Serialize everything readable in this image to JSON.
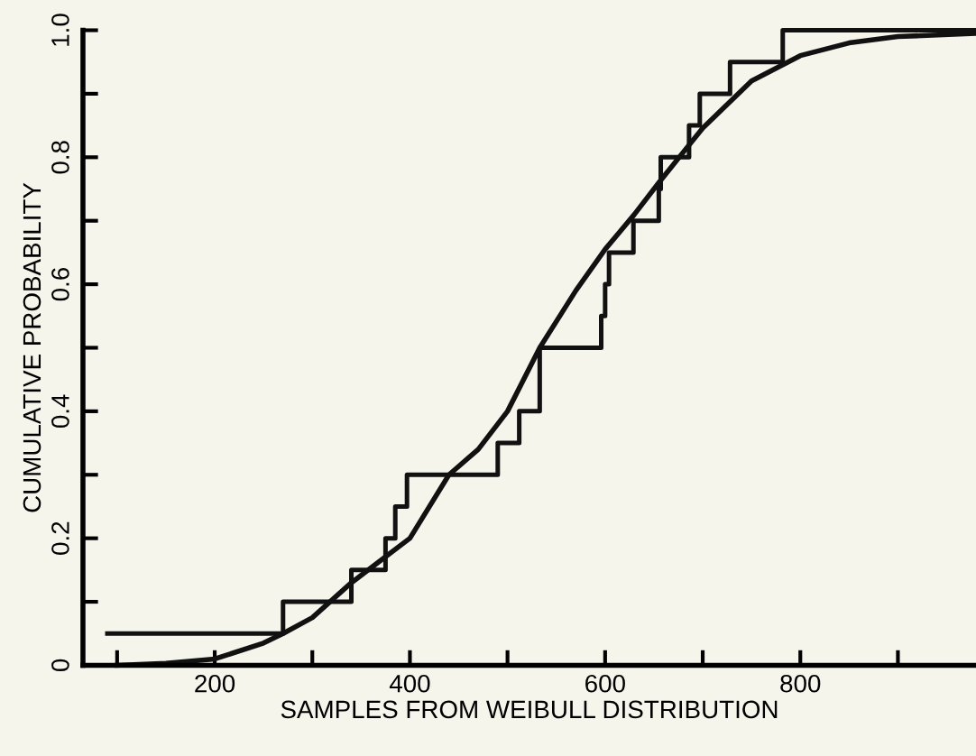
{
  "chart_data": {
    "type": "line",
    "xlabel": "SAMPLES FROM WEIBULL DISTRIBUTION",
    "ylabel": "CUMULATIVE PROBABILITY",
    "series": [
      {
        "type": "step",
        "color": "#111111",
        "x": [
          90,
          270,
          340,
          375,
          385,
          397,
          490,
          512,
          533,
          596,
          600,
          604,
          629,
          655,
          657,
          686,
          697,
          728,
          782,
          980
        ],
        "values": [
          0.05,
          0.1,
          0.15,
          0.2,
          0.25,
          0.3,
          0.35,
          0.4,
          0.5,
          0.55,
          0.6,
          0.65,
          0.7,
          0.75,
          0.8,
          0.85,
          0.9,
          0.95,
          1.0,
          1.0
        ]
      },
      {
        "color": "#111111",
        "x": [
          100,
          150,
          200,
          250,
          270,
          300,
          340,
          370,
          400,
          440,
          470,
          500,
          533,
          570,
          600,
          630,
          655,
          700,
          750,
          800,
          850,
          900,
          980
        ],
        "values": [
          0.0,
          0.003,
          0.01,
          0.035,
          0.05,
          0.075,
          0.13,
          0.165,
          0.2,
          0.3,
          0.34,
          0.4,
          0.5,
          0.59,
          0.655,
          0.71,
          0.76,
          0.846,
          0.92,
          0.96,
          0.98,
          0.99,
          0.995
        ]
      }
    ],
    "xlim": [
      65,
      980
    ],
    "ylim": [
      0,
      1.0
    ],
    "xticks": [
      {
        "value": 100,
        "label": null
      },
      200,
      {
        "value": 300,
        "label": null
      },
      400,
      {
        "value": 500,
        "label": null
      },
      600,
      {
        "value": 700,
        "label": null
      },
      800,
      {
        "value": 900,
        "label": null
      }
    ],
    "yticks": [
      0,
      {
        "value": 0.1,
        "label": null
      },
      0.2,
      {
        "value": 0.3,
        "label": null
      },
      0.4,
      {
        "value": 0.5,
        "label": null
      },
      0.6,
      {
        "value": 0.7,
        "label": null
      },
      0.8,
      {
        "value": 0.9,
        "label": null
      },
      {
        "value": 1.0,
        "label": "1.0"
      }
    ],
    "grid": false,
    "legend": false
  }
}
